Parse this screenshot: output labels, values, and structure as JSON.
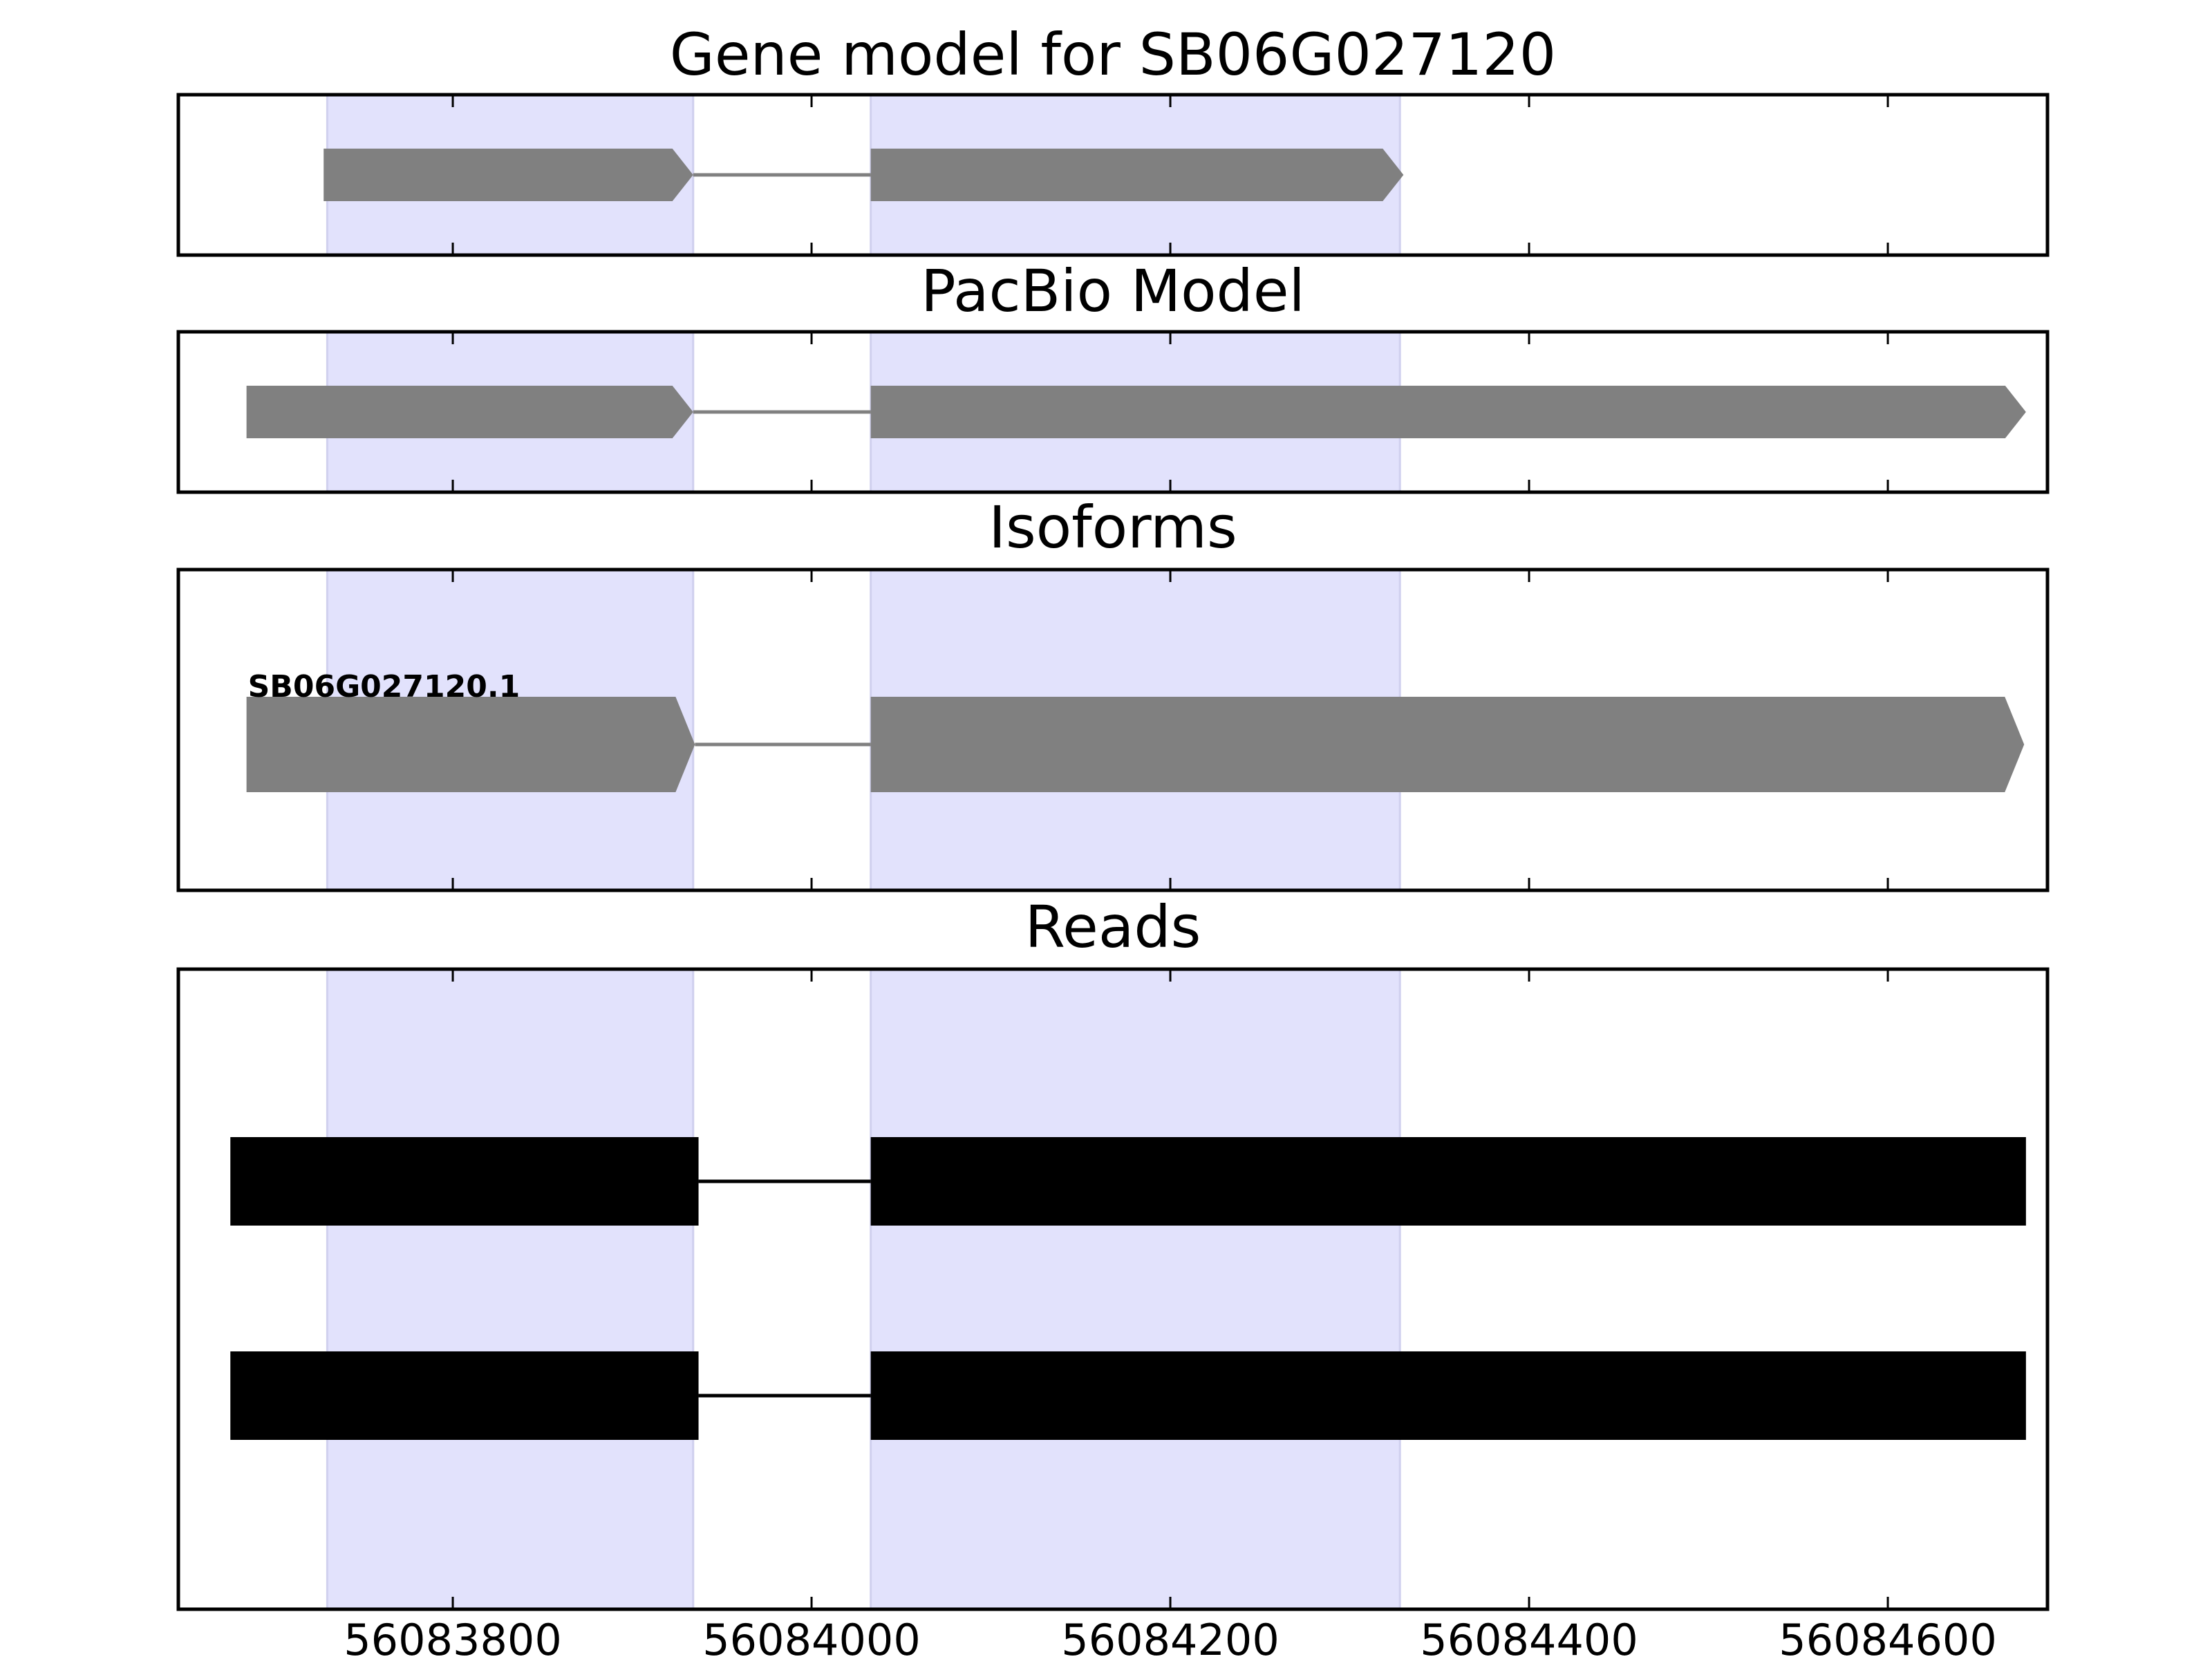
{
  "chart_data": {
    "type": "gene-track",
    "xlim": [
      56083647,
      56084689
    ],
    "x_ticks": [
      {
        "value": 56083800,
        "label": "56083800"
      },
      {
        "value": 56084000,
        "label": "56084000"
      },
      {
        "value": 56084200,
        "label": "56084200"
      },
      {
        "value": 56084400,
        "label": "56084400"
      },
      {
        "value": 56084600,
        "label": "56084600"
      }
    ],
    "highlight_regions": [
      [
        56083730,
        56083934
      ],
      [
        56084033,
        56084328
      ]
    ],
    "colors": {
      "highlight": "#e2e2fc",
      "model": "#808080",
      "read": "#000000",
      "axis": "#000000"
    },
    "panels": [
      {
        "id": "gene-model",
        "title": "Gene model for SB06G027120",
        "features": [
          {
            "strand": "+",
            "exons": [
              [
                56083728,
                56083934
              ],
              [
                56084033,
                56084330
              ]
            ]
          }
        ]
      },
      {
        "id": "pacbio-model",
        "title": "PacBio Model",
        "features": [
          {
            "strand": "+",
            "exons": [
              [
                56083685,
                56083934
              ],
              [
                56084033,
                56084677
              ]
            ]
          }
        ]
      },
      {
        "id": "isoforms",
        "title": "Isoforms",
        "features": [
          {
            "label": "SB06G027120.1",
            "strand": "+",
            "exons": [
              [
                56083685,
                56083935
              ],
              [
                56084033,
                56084676
              ]
            ]
          }
        ]
      },
      {
        "id": "reads",
        "title": "Reads",
        "features": [
          {
            "strand": "+",
            "exons": [
              [
                56083676,
                56083937
              ],
              [
                56084033,
                56084677
              ]
            ]
          },
          {
            "strand": "+",
            "exons": [
              [
                56083676,
                56083937
              ],
              [
                56084033,
                56084677
              ]
            ]
          }
        ]
      }
    ]
  }
}
